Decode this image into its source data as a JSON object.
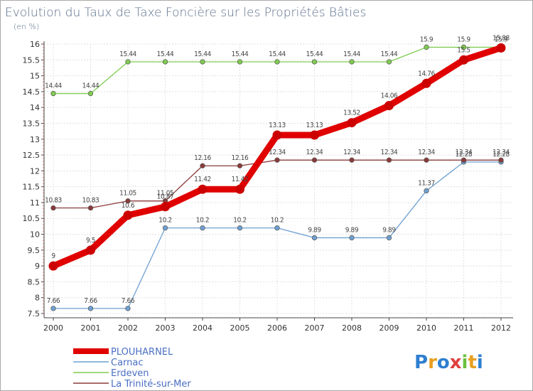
{
  "chart_data": {
    "type": "line",
    "title": "Evolution du Taux de Taxe Foncière sur les Propriétés Bâties",
    "ylabel": "(en %)",
    "xlabel": "",
    "x": [
      "2000",
      "2001",
      "2002",
      "2003",
      "2004",
      "2005",
      "2006",
      "2007",
      "2008",
      "2009",
      "2010",
      "2011",
      "2012"
    ],
    "ylim": [
      7.5,
      16
    ],
    "yticks": [
      "7.5",
      "8",
      "8.5",
      "9",
      "9.5",
      "10",
      "10.5",
      "11",
      "11.5",
      "12",
      "12.5",
      "13",
      "13.5",
      "14",
      "14.5",
      "15",
      "15.5",
      "16"
    ],
    "grid": true,
    "series": [
      {
        "name": "PLOUHARNEL",
        "color": "#e00000",
        "values": [
          9,
          9.5,
          10.6,
          10.87,
          11.42,
          11.42,
          13.13,
          13.13,
          13.52,
          14.06,
          14.76,
          15.5,
          15.88
        ],
        "labels": [
          "9",
          "9.5",
          "10.6",
          "10.87",
          "11.42",
          "11.42",
          "13.13",
          "13.13",
          "13.52",
          "14.06",
          "14.76",
          "15.5",
          "15.88"
        ]
      },
      {
        "name": "Carnac",
        "color": "#6fa0d0",
        "values": [
          7.66,
          7.66,
          7.66,
          10.2,
          10.2,
          10.2,
          10.2,
          9.89,
          9.89,
          9.89,
          11.37,
          12.28,
          12.28
        ],
        "labels": [
          "7.66",
          "7.66",
          "7.66",
          "10.2",
          "10.2",
          "10.2",
          "10.2",
          "9.89",
          "9.89",
          "9.89",
          "11.37",
          "12.28",
          "12.28"
        ]
      },
      {
        "name": "Erdeven",
        "color": "#80cc50",
        "values": [
          14.44,
          14.44,
          15.44,
          15.44,
          15.44,
          15.44,
          15.44,
          15.44,
          15.44,
          15.44,
          15.9,
          15.9,
          15.9
        ],
        "labels": [
          "14.44",
          "14.44",
          "15.44",
          "15.44",
          "15.44",
          "15.44",
          "15.44",
          "15.44",
          "15.44",
          "15.44",
          "15.9",
          "15.9",
          "15.9"
        ]
      },
      {
        "name": "La Trinité-sur-Mer",
        "color": "#8b3a3a",
        "values": [
          10.83,
          10.83,
          11.05,
          11.05,
          12.16,
          12.16,
          12.34,
          12.34,
          12.34,
          12.34,
          12.34,
          12.34,
          12.34
        ],
        "labels": [
          "10.83",
          "10.83",
          "11.05",
          "11.05",
          "12.16",
          "12.16",
          "12.34",
          "12.34",
          "12.34",
          "12.34",
          "12.34",
          "12.34",
          "12.34"
        ]
      }
    ],
    "legend_position": "bottom-left",
    "logo_text": "Proxiti"
  }
}
